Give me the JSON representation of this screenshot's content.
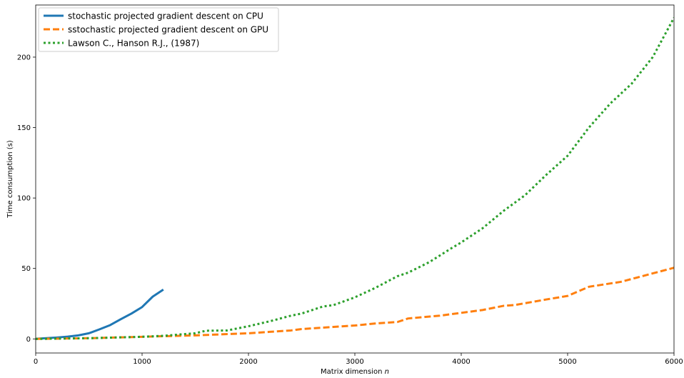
{
  "chart_data": {
    "type": "line",
    "title": "",
    "xlabel": "Matrix dimension",
    "xlabel_var": "n",
    "ylabel": "Time consumption (s)",
    "xlim": [
      0,
      6000
    ],
    "ylim": [
      -10,
      237
    ],
    "xticks": [
      0,
      1000,
      2000,
      3000,
      4000,
      5000,
      6000
    ],
    "yticks": [
      0,
      50,
      100,
      150,
      200
    ],
    "grid": false,
    "legend_position": "top-left",
    "series": [
      {
        "name": "stochastic projected gradient descent on CPU",
        "color": "#1f77b4",
        "style": "solid",
        "x": [
          0,
          100,
          200,
          300,
          400,
          500,
          600,
          700,
          800,
          900,
          1000,
          1100,
          1200
        ],
        "y": [
          0.1,
          0.5,
          1.0,
          1.6,
          2.5,
          4.0,
          6.8,
          9.8,
          14.0,
          18.0,
          22.6,
          30.0,
          35.0
        ]
      },
      {
        "name": "sstochastic projected gradient descent on GPU",
        "color": "#ff7f0e",
        "style": "dashed",
        "x": [
          0,
          500,
          1000,
          1500,
          2000,
          2200,
          2400,
          2500,
          2800,
          3000,
          3200,
          3400,
          3500,
          3800,
          4000,
          4200,
          4400,
          4500,
          4800,
          5000,
          5200,
          5500,
          5800,
          6000
        ],
        "y": [
          0,
          0.5,
          1.5,
          2.5,
          4.0,
          5.0,
          6.0,
          7.0,
          8.5,
          9.5,
          11.0,
          12.0,
          14.5,
          16.5,
          18.5,
          20.5,
          23.5,
          24.0,
          28.0,
          30.5,
          37.0,
          40.5,
          46.5,
          50.5
        ]
      },
      {
        "name": "Lawson C., Hanson R.J., (1987)",
        "color": "#2ca02c",
        "style": "dotted",
        "x": [
          0,
          500,
          1000,
          1200,
          1500,
          1600,
          1800,
          2000,
          2200,
          2400,
          2500,
          2700,
          2800,
          3000,
          3200,
          3400,
          3500,
          3700,
          3900,
          4000,
          4200,
          4400,
          4600,
          4800,
          5000,
          5200,
          5400,
          5600,
          5800,
          6000
        ],
        "y": [
          0,
          0.5,
          1.5,
          2.2,
          4.0,
          5.8,
          6.0,
          9.0,
          12.5,
          16.5,
          18.0,
          23.0,
          24.0,
          29.5,
          36.5,
          44.5,
          47.0,
          54.5,
          64.0,
          68.5,
          78.5,
          91.0,
          102.0,
          116.5,
          130.0,
          150.0,
          167.0,
          181.0,
          200.0,
          228.0
        ]
      }
    ]
  }
}
